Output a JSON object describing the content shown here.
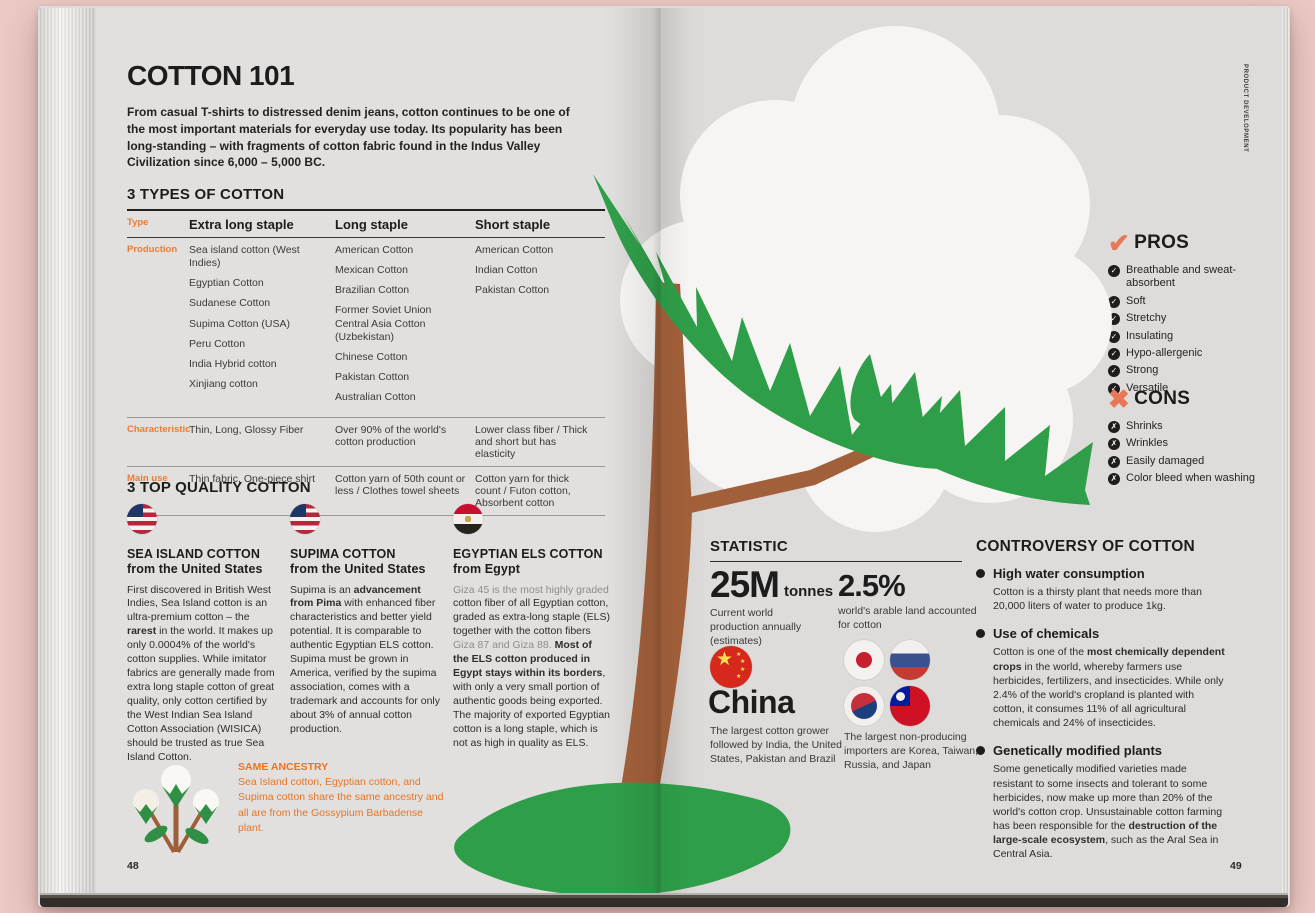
{
  "colors": {
    "accent_orange": "#ee7c33",
    "accent_coral": "#e8775a",
    "leaf_green": "#2f9e49",
    "stem_brown": "#a2603a",
    "page_gray": "#dfdedc",
    "backdrop_pink": "#ecc9c5",
    "ink": "#1c1c1c"
  },
  "spine_label": "PRODUCT DEVELOPMENT",
  "icons": {
    "pros": "check-icon",
    "cons": "cross-icon",
    "grower_flag": "flag-china-icon",
    "importer_flags": [
      "flag-japan-icon",
      "flag-russia-icon",
      "flag-south-korea-icon",
      "flag-taiwan-icon"
    ],
    "quality_flags": [
      "flag-usa-icon",
      "flag-usa-icon",
      "flag-egypt-icon"
    ]
  },
  "left_page": {
    "page_number": "48",
    "title": "COTTON 101",
    "intro": "From casual T-shirts to distressed denim jeans, cotton continues to be one of the most important materials for everyday use today. Its popularity has been long-standing – with fragments of cotton fabric found in the Indus Valley Civilization since 6,000 – 5,000 BC.",
    "types": {
      "heading": "3 TYPES OF COTTON",
      "label_type": "Type",
      "label_production": "Production",
      "label_characteristic": "Characteristic",
      "label_main_use": "Main use",
      "columns": [
        {
          "name": "Extra long staple",
          "production": [
            "Sea island cotton (West Indies)",
            "Egyptian Cotton",
            "Sudanese Cotton",
            "Supima Cotton (USA)",
            "Peru Cotton",
            "India Hybrid cotton",
            "Xinjiang cotton"
          ],
          "characteristic": "Thin, Long, Glossy Fiber",
          "main_use": "Thin fabric, One-piece shirt"
        },
        {
          "name": "Long staple",
          "production": [
            "American Cotton",
            "Mexican Cotton",
            "Brazilian Cotton",
            "Former Soviet Union Central Asia Cotton (Uzbekistan)",
            "Chinese Cotton",
            "Pakistan Cotton",
            "Australian Cotton"
          ],
          "characteristic": "Over 90% of the world's cotton production",
          "main_use": "Cotton yarn of 50th count or less / Clothes towel sheets"
        },
        {
          "name": "Short staple",
          "production": [
            "American Cotton",
            "Indian Cotton",
            "Pakistan Cotton"
          ],
          "characteristic": "Lower class fiber / Thick and short but has elasticity",
          "main_use": "Cotton yarn for thick count / Futon cotton, Absorbent cotton"
        }
      ]
    },
    "quality": {
      "heading": "3 TOP QUALITY COTTON",
      "items": [
        {
          "title": "SEA ISLAND COTTON",
          "subtitle": "from the United States",
          "body": [
            {
              "t": "First discovered in British West Indies, Sea Island cotton is an ultra-premium cotton – the "
            },
            {
              "t": "rarest",
              "b": true
            },
            {
              "t": " in the world. It makes up only 0.0004% of the world's cotton supplies. While imitator fabrics are generally made from extra long staple cotton of great quality, only cotton certified by the West Indian Sea Island Cotton Association (WISICA) should be trusted as true Sea Island Cotton."
            }
          ]
        },
        {
          "title": "SUPIMA COTTON",
          "subtitle": "from the United States",
          "body": [
            {
              "t": "Supima is an "
            },
            {
              "t": "advancement from Pima",
              "b": true
            },
            {
              "t": " with enhanced fiber characteristics and better yield potential. It is comparable to authentic Egyptian ELS cotton. Supima must be grown in America, verified by the supima association, comes with a trademark and accounts for only about 3% of annual cotton production."
            }
          ]
        },
        {
          "title": "EGYPTIAN ELS COTTON",
          "subtitle": "from Egypt",
          "body": [
            {
              "t": "Giza 45 is the most highly graded",
              "m": true
            },
            {
              "t": " cotton fiber of all Egyptian cotton, graded as extra-long staple (ELS) together with the cotton fibers "
            },
            {
              "t": "Giza 87 and Giza 88.",
              "m": true
            },
            {
              "t": " "
            },
            {
              "t": "Most of the ELS cotton produced in Egypt stays within its borders",
              "b": true
            },
            {
              "t": ", with only a very small portion of authentic goods being exported. The majority of exported Egyptian cotton is a long staple, which is not as high in quality as ELS."
            }
          ]
        }
      ]
    },
    "ancestry": {
      "heading": "SAME ANCESTRY",
      "body": "Sea Island cotton, Egyptian cotton, and Supima cotton share the same ancestry and all are from the Gossypium Barbadense plant."
    }
  },
  "right_page": {
    "page_number": "49",
    "pros": {
      "heading": "PROS",
      "items": [
        "Breathable and sweat-absorbent",
        "Soft",
        "Stretchy",
        "Insulating",
        "Hypo-allergenic",
        "Strong",
        "Versatile"
      ]
    },
    "cons": {
      "heading": "CONS",
      "items": [
        "Shrinks",
        "Wrinkles",
        "Easily damaged",
        "Color bleed when washing"
      ]
    },
    "statistic": {
      "heading": "STATISTIC",
      "stat1": {
        "value": "25M",
        "unit": "tonnes",
        "caption": "Current world production annually (estimates)"
      },
      "stat2": {
        "value": "2.5%",
        "caption": "world's arable land accounted for cotton"
      },
      "grower": {
        "name": "China",
        "caption": "The largest cotton grower followed by India, the United States, Pakistan and Brazil"
      },
      "importers": {
        "caption": "The largest non-producing importers are Korea, Taiwan, Russia, and Japan"
      }
    },
    "controversy": {
      "heading": "CONTROVERSY OF COTTON",
      "items": [
        {
          "title": "High water consumption",
          "body": [
            {
              "t": "Cotton is a thirsty plant that needs more than 20,000 liters of water to produce 1kg."
            }
          ]
        },
        {
          "title": "Use of chemicals",
          "body": [
            {
              "t": "Cotton is one of the "
            },
            {
              "t": "most chemically dependent crops",
              "b": true
            },
            {
              "t": " in the world, whereby farmers use herbicides, fertilizers, and insecticides. While only 2.4% of the world's cropland is planted with cotton, it consumes 11% of all agricultural chemicals and 24% of insecticides."
            }
          ]
        },
        {
          "title": "Genetically modified plants",
          "body": [
            {
              "t": "Some genetically modified varieties made resistant to some insects and tolerant to some herbicides, now make up more than 20% of the world's cotton crop. Unsustainable cotton farming has been responsible for the "
            },
            {
              "t": "destruction of the large-scale ecosystem",
              "b": true
            },
            {
              "t": ", such as the Aral Sea in Central Asia."
            }
          ]
        }
      ]
    }
  }
}
